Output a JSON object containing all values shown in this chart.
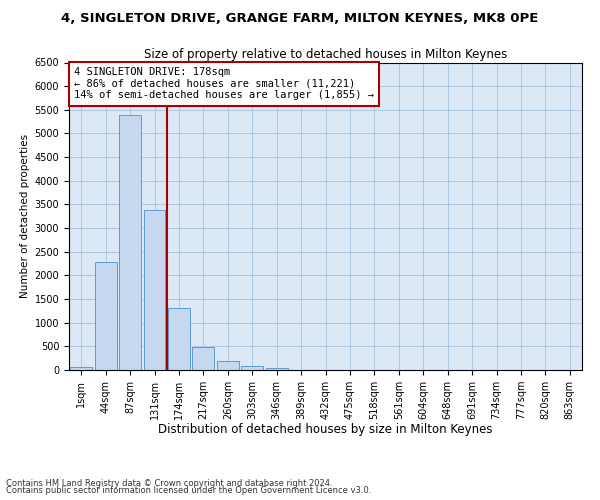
{
  "title1": "4, SINGLETON DRIVE, GRANGE FARM, MILTON KEYNES, MK8 0PE",
  "title2": "Size of property relative to detached houses in Milton Keynes",
  "xlabel": "Distribution of detached houses by size in Milton Keynes",
  "ylabel": "Number of detached properties",
  "footnote1": "Contains HM Land Registry data © Crown copyright and database right 2024.",
  "footnote2": "Contains public sector information licensed under the Open Government Licence v3.0.",
  "categories": [
    "1sqm",
    "44sqm",
    "87sqm",
    "131sqm",
    "174sqm",
    "217sqm",
    "260sqm",
    "303sqm",
    "346sqm",
    "389sqm",
    "432sqm",
    "475sqm",
    "518sqm",
    "561sqm",
    "604sqm",
    "648sqm",
    "691sqm",
    "734sqm",
    "777sqm",
    "820sqm",
    "863sqm"
  ],
  "values": [
    70,
    2280,
    5400,
    3380,
    1310,
    480,
    185,
    80,
    50,
    0,
    0,
    0,
    0,
    0,
    0,
    0,
    0,
    0,
    0,
    0,
    0
  ],
  "bar_color": "#c5d8ef",
  "bar_edge_color": "#5b9bd5",
  "vline_x_index": 3.5,
  "vline_color": "#aa0000",
  "annotation_text": "4 SINGLETON DRIVE: 178sqm\n← 86% of detached houses are smaller (11,221)\n14% of semi-detached houses are larger (1,855) →",
  "annotation_box_color": "#ffffff",
  "annotation_box_edge": "#aa0000",
  "ylim": [
    0,
    6500
  ],
  "yticks": [
    0,
    500,
    1000,
    1500,
    2000,
    2500,
    3000,
    3500,
    4000,
    4500,
    5000,
    5500,
    6000,
    6500
  ],
  "bg_color": "#dce8f5",
  "fig_bg_color": "#ffffff",
  "title1_fontsize": 9.5,
  "title2_fontsize": 8.5,
  "xlabel_fontsize": 8.5,
  "ylabel_fontsize": 7.5,
  "tick_fontsize": 7,
  "annotation_fontsize": 7.5,
  "footnote_fontsize": 6
}
